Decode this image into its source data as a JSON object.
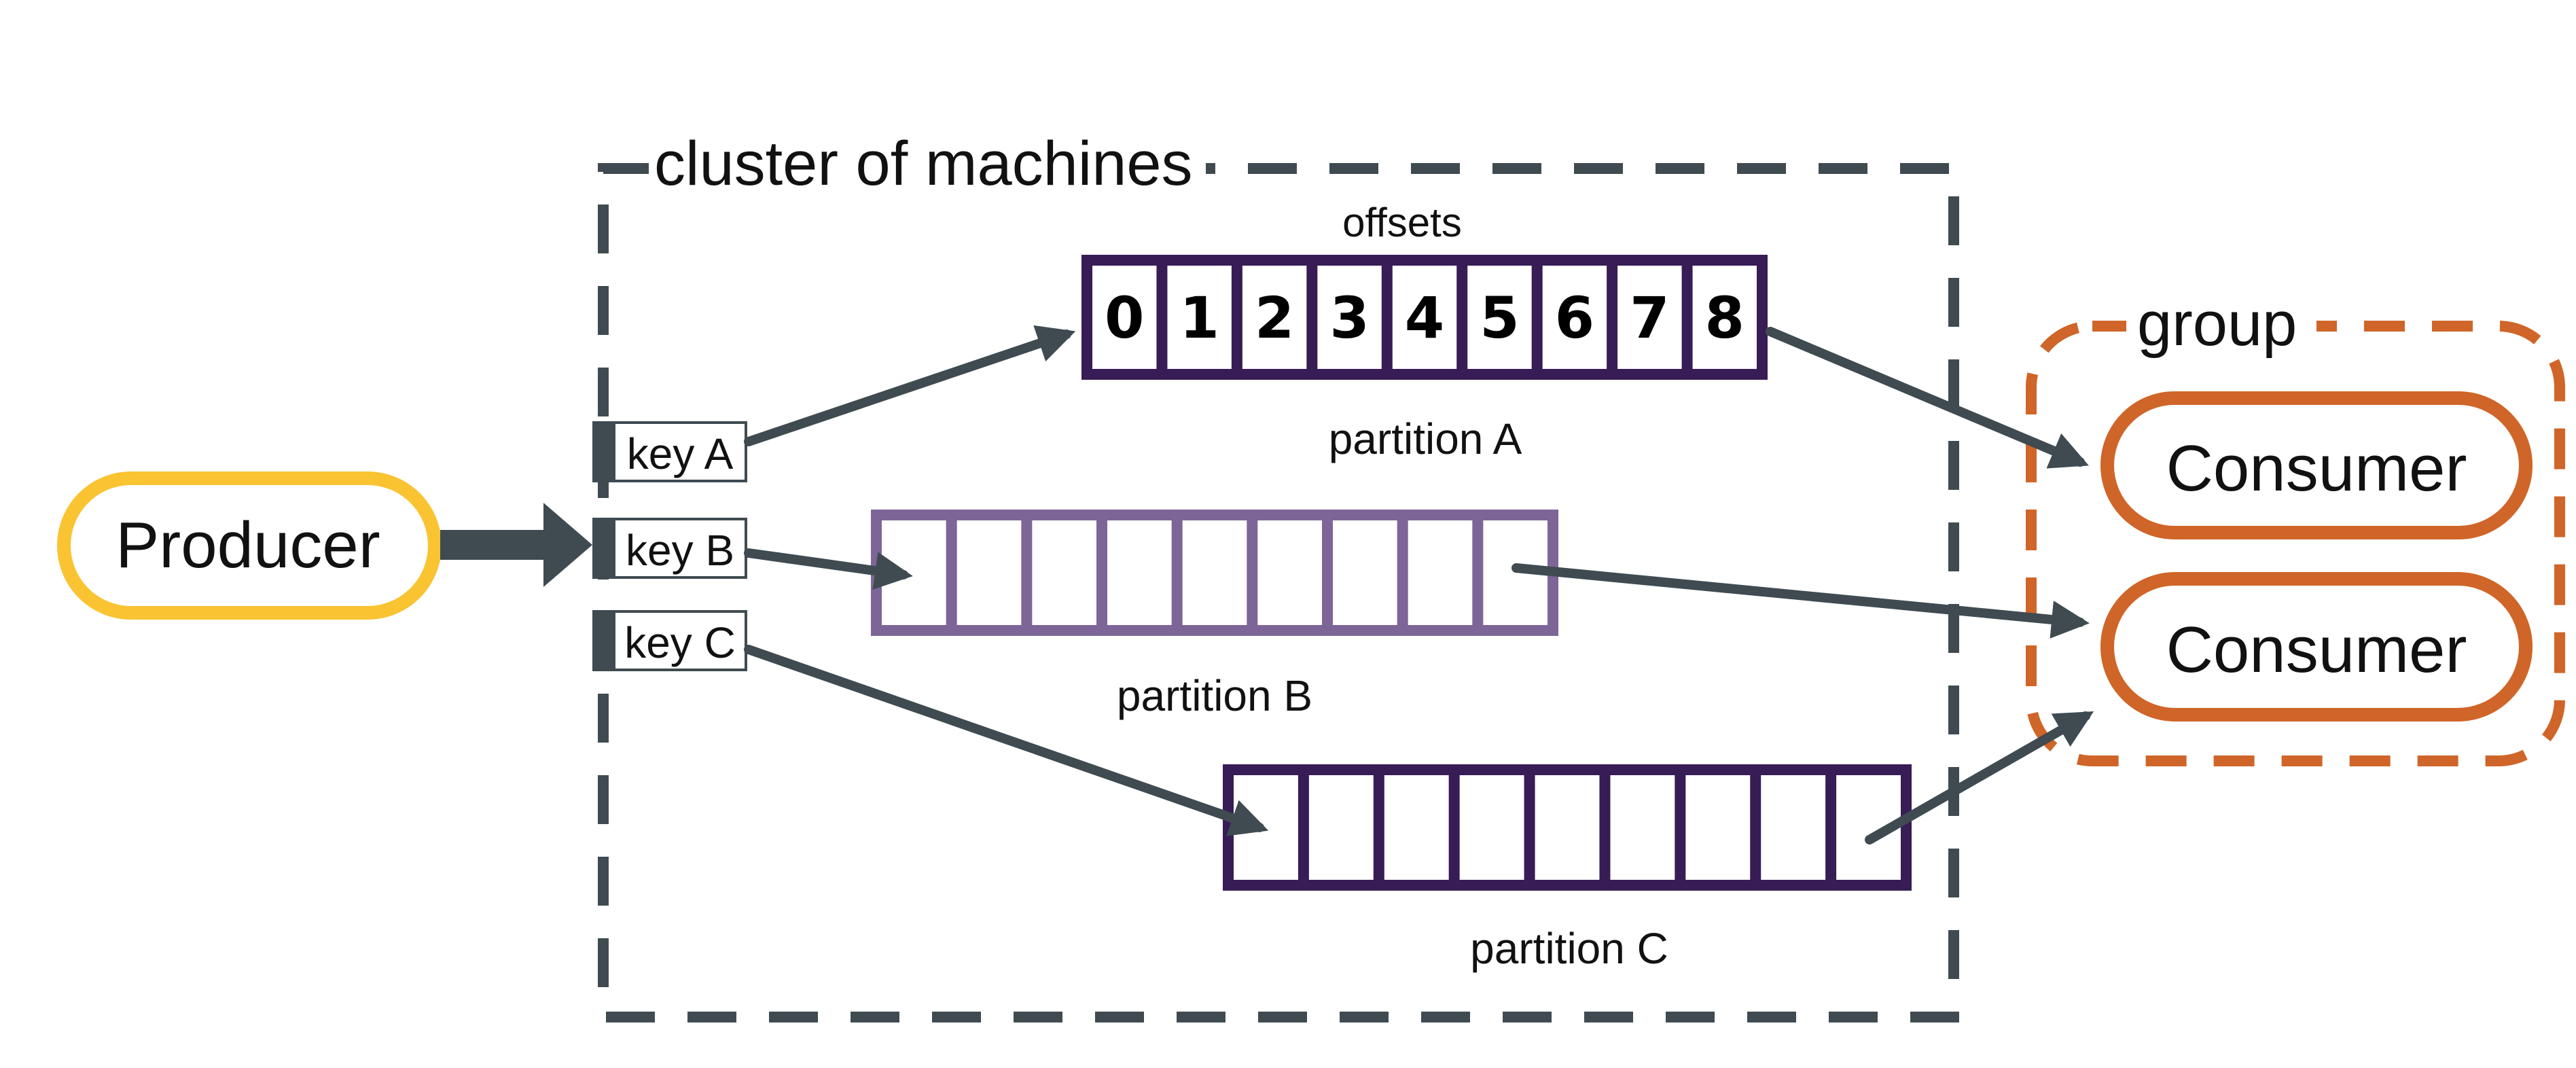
{
  "cluster": {
    "label": "cluster of machines"
  },
  "producer": {
    "label": "Producer"
  },
  "keys": [
    {
      "label": "key A"
    },
    {
      "label": "key B"
    },
    {
      "label": "key C"
    }
  ],
  "offsets_label": "offsets",
  "partitions": [
    {
      "label": "partition A",
      "color": "#371c56",
      "cells": [
        "0",
        "1",
        "2",
        "3",
        "4",
        "5",
        "6",
        "7",
        "8"
      ]
    },
    {
      "label": "partition B",
      "color": "#7d6598",
      "cells": [
        "",
        "",
        "",
        "",
        "",
        "",
        "",
        "",
        ""
      ]
    },
    {
      "label": "partition C",
      "color": "#371c56",
      "cells": [
        "",
        "",
        "",
        "",
        "",
        "",
        "",
        "",
        ""
      ]
    }
  ],
  "group": {
    "label": "group"
  },
  "consumers": [
    {
      "label": "Consumer"
    },
    {
      "label": "Consumer"
    }
  ],
  "colors": {
    "producer_border": "#f9c332",
    "consumer_border": "#cf6528",
    "arrow": "#3f4b51",
    "cluster_border": "#3f4b51"
  }
}
